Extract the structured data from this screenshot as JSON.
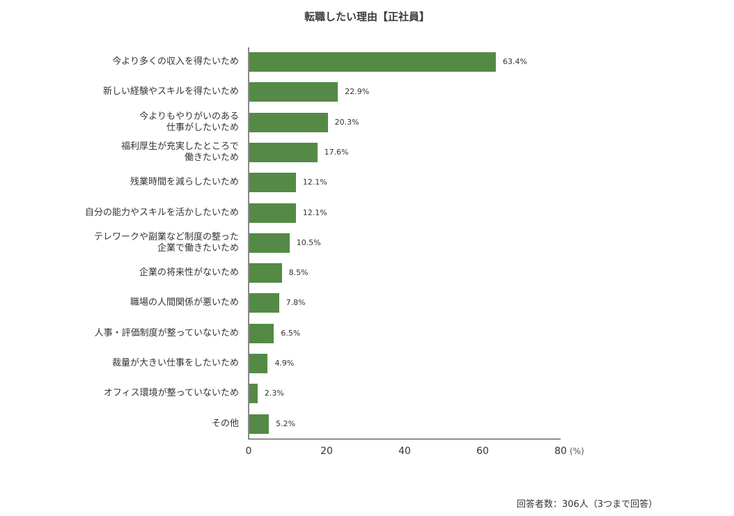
{
  "chart_data": {
    "type": "bar",
    "orientation": "horizontal",
    "title": "転職したい理由【正社員】",
    "categories": [
      "今より多くの収入を得たいため",
      "新しい経験やスキルを得たいため",
      "今よりもやりがいのある\n仕事がしたいため",
      "福利厚生が充実したところで\n働きたいため",
      "残業時間を減らしたいため",
      "自分の能力やスキルを活かしたいため",
      "テレワークや副業など制度の整った\n企業で働きたいため",
      "企業の将来性がないため",
      "職場の人間関係が悪いため",
      "人事・評価制度が整っていないため",
      "裁量が大きい仕事をしたいため",
      "オフィス環境が整っていないため",
      "その他"
    ],
    "values": [
      63.4,
      22.9,
      20.3,
      17.6,
      12.1,
      12.1,
      10.5,
      8.5,
      7.8,
      6.5,
      4.9,
      2.3,
      5.2
    ],
    "value_labels": [
      "63.4%",
      "22.9%",
      "20.3%",
      "17.6%",
      "12.1%",
      "12.1%",
      "10.5%",
      "8.5%",
      "7.8%",
      "6.5%",
      "4.9%",
      "2.3%",
      "5.2%"
    ],
    "xlabel": "(%)",
    "ylabel": "",
    "xlim": [
      0,
      80
    ],
    "xticks": [
      "0",
      "20",
      "40",
      "60",
      "80"
    ],
    "grid": false,
    "legend": null,
    "bar_color": "#548a45",
    "note": "回答者数：306人（3つまで回答）"
  }
}
